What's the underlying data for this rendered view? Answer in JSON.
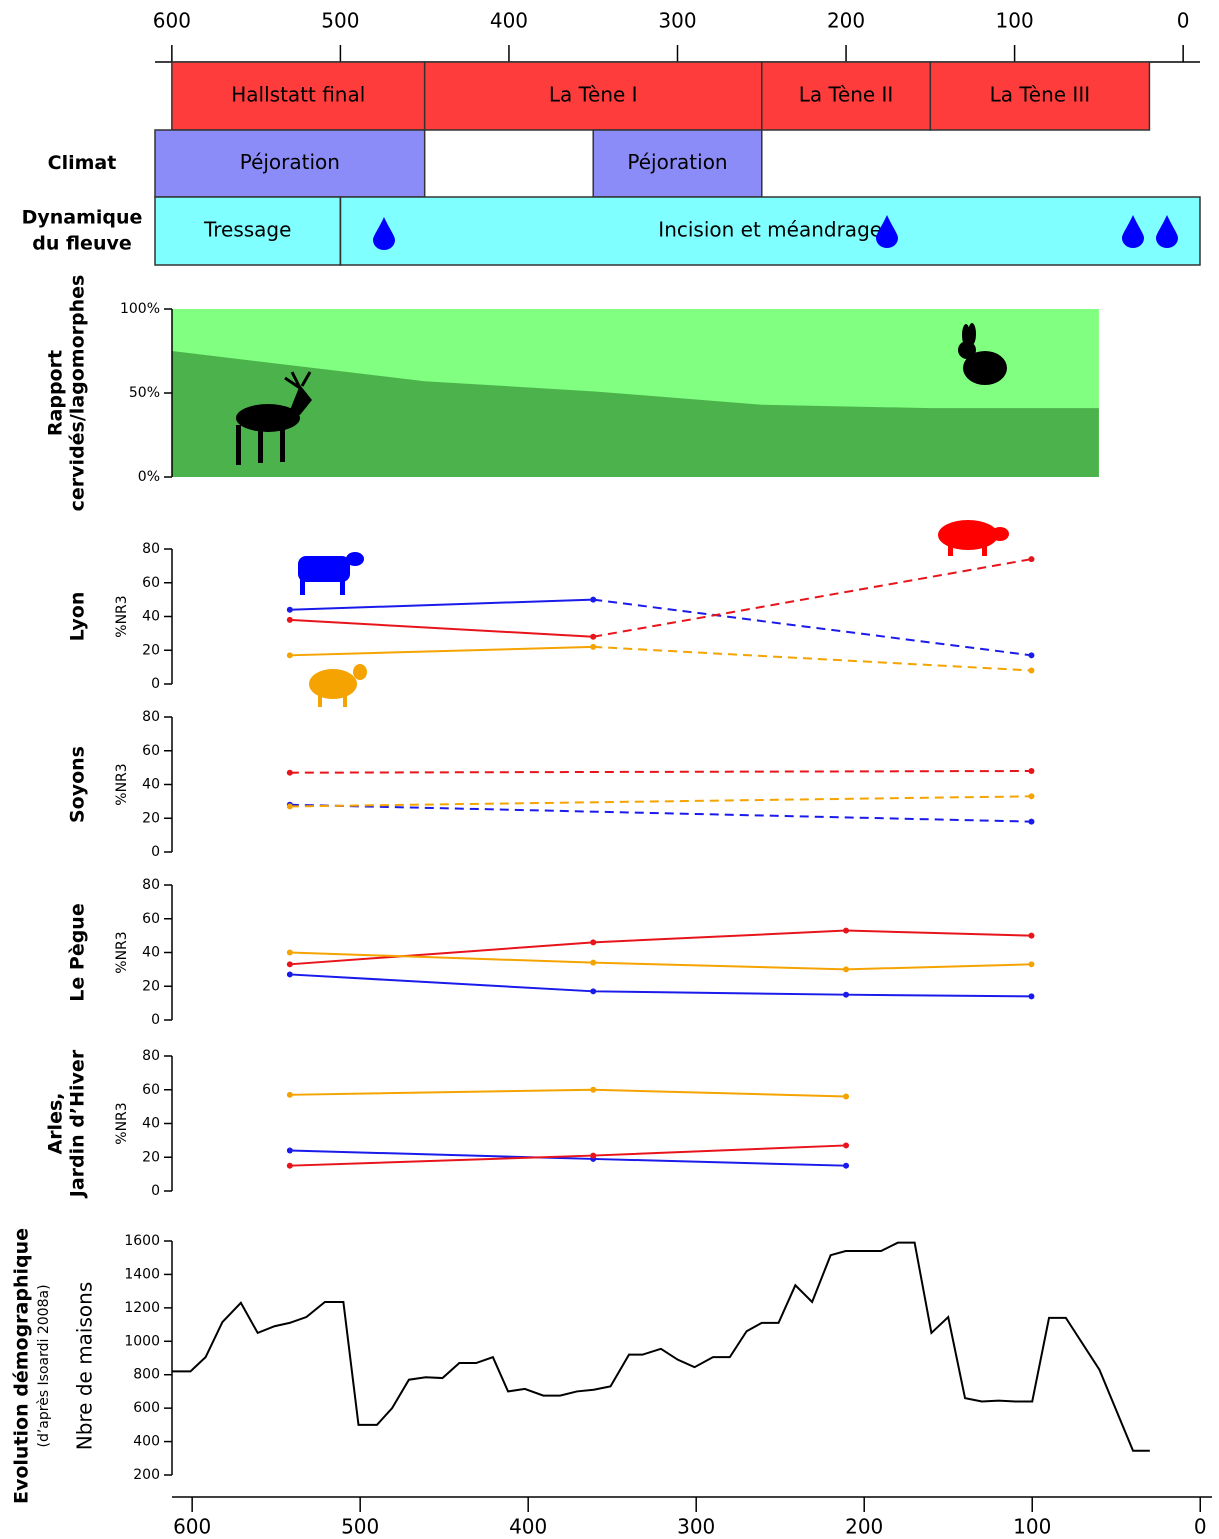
{
  "chart_data": [
    {
      "type": "timeline",
      "xlim": [
        610,
        -10
      ],
      "xticks": [
        600,
        500,
        400,
        300,
        200,
        100,
        0
      ],
      "rows": [
        {
          "color": "#ff3c3c",
          "bands": [
            {
              "label": "Hallstatt final",
              "start": 600,
              "end": 450
            },
            {
              "label": "La Tène I",
              "start": 450,
              "end": 250
            },
            {
              "label": "La Tène II",
              "start": 250,
              "end": 150
            },
            {
              "label": "La Tène III",
              "start": 150,
              "end": 20
            }
          ]
        },
        {
          "label": "Climat",
          "color": "#8c8cf8",
          "bands": [
            {
              "label": "Péjoration",
              "start": 610,
              "end": 450
            },
            {
              "label": "Péjoration",
              "start": 350,
              "end": 250
            }
          ]
        },
        {
          "label": [
            "Dynamique",
            "du fleuve"
          ],
          "color": "#7fffff",
          "bands": [
            {
              "label": "Tressage",
              "start": 610,
              "end": 500
            },
            {
              "label": "Incision et méandrage",
              "start": 500,
              "end": -10
            }
          ]
        }
      ]
    },
    {
      "type": "area",
      "title": [
        "Rapport",
        "cervidés/lagomorphes"
      ],
      "x": [
        600,
        450,
        350,
        250,
        150,
        50
      ],
      "values": [
        75,
        57,
        51,
        43,
        41,
        41
      ],
      "color": "#4cb34c",
      "background_color": "#80ff80",
      "ylim": [
        0,
        100
      ],
      "yticks": [
        {
          "value": 0,
          "label": "0%"
        },
        {
          "value": 50,
          "label": "50%"
        },
        {
          "value": 100,
          "label": "100%"
        }
      ]
    },
    {
      "type": "line",
      "title": "Lyon",
      "ylabel": "%NR3",
      "ylim": [
        0,
        80
      ],
      "yticks": [
        0,
        20,
        40,
        60,
        80
      ],
      "x": [
        530,
        350,
        90
      ],
      "dashed_from": 1,
      "series": [
        {
          "color": "#1a1aeb",
          "values": [
            44,
            50,
            17
          ]
        },
        {
          "color": "#e8141b",
          "values": [
            38,
            28,
            74
          ]
        },
        {
          "color": "#f5a300",
          "values": [
            17,
            22,
            8
          ]
        }
      ]
    },
    {
      "type": "line",
      "title": "Soyons",
      "ylabel": "%NR3",
      "ylim": [
        0,
        80
      ],
      "yticks": [
        0,
        20,
        40,
        60,
        80
      ],
      "x": [
        530,
        90
      ],
      "dashed_from": 0,
      "series": [
        {
          "color": "#e8141b",
          "values": [
            47,
            48
          ]
        },
        {
          "color": "#1a1aeb",
          "values": [
            28,
            18
          ]
        },
        {
          "color": "#f5a300",
          "values": [
            27,
            33
          ]
        }
      ]
    },
    {
      "type": "line",
      "title": "Le Pègue",
      "ylabel": "%NR3",
      "ylim": [
        0,
        80
      ],
      "yticks": [
        0,
        20,
        40,
        60,
        80
      ],
      "x": [
        530,
        350,
        200,
        90
      ],
      "series": [
        {
          "color": "#e8141b",
          "values": [
            33,
            46,
            53,
            50
          ]
        },
        {
          "color": "#f5a300",
          "values": [
            40,
            34,
            30,
            33
          ]
        },
        {
          "color": "#1a1aeb",
          "values": [
            27,
            17,
            15,
            14
          ]
        }
      ]
    },
    {
      "type": "line",
      "title": [
        "Arles,",
        "Jardin d’Hiver"
      ],
      "ylabel": "%NR3",
      "ylim": [
        0,
        80
      ],
      "yticks": [
        0,
        20,
        40,
        60,
        80
      ],
      "x": [
        530,
        350,
        200
      ],
      "series": [
        {
          "color": "#f5a300",
          "values": [
            57,
            60,
            56
          ]
        },
        {
          "color": "#1a1aeb",
          "values": [
            24,
            19,
            15
          ]
        },
        {
          "color": "#e8141b",
          "values": [
            15,
            21,
            27
          ]
        }
      ]
    },
    {
      "type": "line",
      "title": "Evolution démographique",
      "subtitle": "(d’après Isoardi 2008a)",
      "ylabel": "Nbre de maisons",
      "xlim": [
        612,
        -7
      ],
      "xticks": [
        600,
        500,
        400,
        300,
        200,
        100,
        0
      ],
      "ylim": [
        200,
        1600
      ],
      "yticks": [
        200,
        400,
        600,
        800,
        1000,
        1200,
        1400,
        1600
      ],
      "x": [
        612,
        601,
        592,
        582,
        571,
        561,
        551,
        542,
        532,
        521,
        510,
        501,
        490,
        481,
        471,
        461,
        451,
        441,
        431,
        421,
        412,
        402,
        391,
        381,
        371,
        361,
        351,
        340,
        332,
        321,
        311,
        301,
        290,
        280,
        270,
        261,
        251,
        241,
        231,
        220,
        211,
        190,
        180,
        170,
        160,
        150,
        140,
        130,
        120,
        110,
        100,
        90,
        80,
        60,
        40,
        30
      ],
      "series": [
        {
          "color": "#000000",
          "values": [
            820,
            820,
            905,
            1115,
            1230,
            1050,
            1090,
            1110,
            1145,
            1235,
            1235,
            500,
            500,
            600,
            770,
            785,
            780,
            870,
            870,
            905,
            700,
            715,
            675,
            675,
            700,
            710,
            730,
            920,
            920,
            955,
            890,
            845,
            905,
            905,
            1060,
            1110,
            1110,
            1335,
            1235,
            1515,
            1540,
            1540,
            1590,
            1590,
            1050,
            1145,
            660,
            640,
            645,
            640,
            640,
            1140,
            1140,
            830,
            345,
            345
          ]
        }
      ]
    }
  ]
}
